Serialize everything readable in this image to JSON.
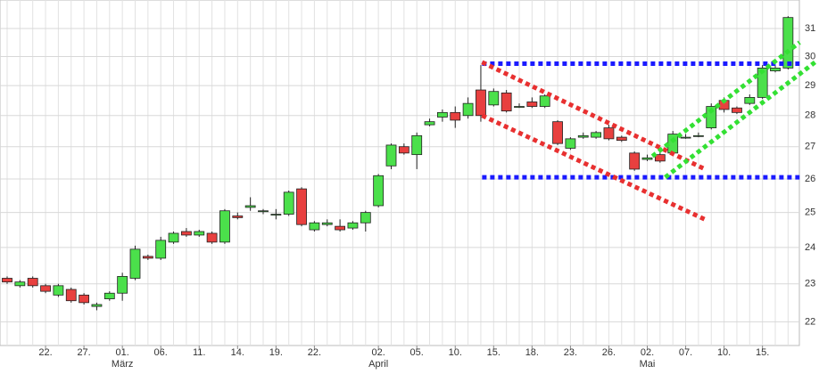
{
  "chart_data": {
    "type": "candlestick",
    "categories": [
      null,
      null,
      null,
      "22.",
      null,
      null,
      "27.",
      null,
      null,
      "01.",
      null,
      null,
      "06.",
      null,
      null,
      "11.",
      null,
      null,
      "14.",
      null,
      null,
      "19.",
      null,
      null,
      "22.",
      null,
      null,
      null,
      null,
      "02.",
      null,
      null,
      "05.",
      null,
      null,
      "10.",
      null,
      null,
      "15.",
      null,
      null,
      "18.",
      null,
      null,
      "23.",
      null,
      null,
      "26.",
      null,
      null,
      "02.",
      null,
      null,
      "07.",
      null,
      null,
      "10.",
      null,
      null,
      "15.",
      null,
      null
    ],
    "months": [
      null,
      null,
      null,
      null,
      null,
      null,
      null,
      null,
      null,
      "März",
      null,
      null,
      null,
      null,
      null,
      null,
      null,
      null,
      null,
      null,
      null,
      null,
      null,
      null,
      null,
      null,
      null,
      null,
      null,
      "April",
      null,
      null,
      null,
      null,
      null,
      null,
      null,
      null,
      null,
      null,
      null,
      null,
      null,
      null,
      null,
      null,
      null,
      null,
      null,
      null,
      "Mai",
      null,
      null,
      null,
      null,
      null,
      null,
      null,
      null,
      null,
      null,
      null
    ],
    "open": [
      23.15,
      22.95,
      23.15,
      22.95,
      22.7,
      22.85,
      22.7,
      22.4,
      22.6,
      22.75,
      23.15,
      23.75,
      23.7,
      24.15,
      24.45,
      24.35,
      24.4,
      24.15,
      24.9,
      25.15,
      25.05,
      24.95,
      24.95,
      25.7,
      24.5,
      24.65,
      24.6,
      24.55,
      24.7,
      25.2,
      26.4,
      27.0,
      26.75,
      27.7,
      27.95,
      28.1,
      28.0,
      28.85,
      28.35,
      28.75,
      28.3,
      28.45,
      28.3,
      27.8,
      26.95,
      27.3,
      27.3,
      27.6,
      27.3,
      26.8,
      26.6,
      26.75,
      26.8,
      27.3,
      27.35,
      27.6,
      28.5,
      28.25,
      28.4,
      28.6,
      29.5,
      29.6
    ],
    "high": [
      23.2,
      23.1,
      23.2,
      23.0,
      23.0,
      22.9,
      22.75,
      22.5,
      22.8,
      23.3,
      24.05,
      23.8,
      24.3,
      24.45,
      24.55,
      24.5,
      24.45,
      25.1,
      25.0,
      25.45,
      25.1,
      25.1,
      25.65,
      25.75,
      24.75,
      24.8,
      24.8,
      24.75,
      25.05,
      26.15,
      27.1,
      27.1,
      27.45,
      27.9,
      28.2,
      28.3,
      28.6,
      29.7,
      28.9,
      28.85,
      28.4,
      28.6,
      28.7,
      27.85,
      27.3,
      27.45,
      27.5,
      27.7,
      27.35,
      26.85,
      26.75,
      26.85,
      27.5,
      27.4,
      27.45,
      28.4,
      28.6,
      28.3,
      28.7,
      29.7,
      29.7,
      31.45
    ],
    "low": [
      23.0,
      22.9,
      22.9,
      22.75,
      22.65,
      22.5,
      22.45,
      22.3,
      22.55,
      22.55,
      23.1,
      23.65,
      23.65,
      24.1,
      24.3,
      24.3,
      24.1,
      24.1,
      24.8,
      25.05,
      24.95,
      24.8,
      24.9,
      24.6,
      24.45,
      24.6,
      24.45,
      24.5,
      24.45,
      25.15,
      26.3,
      26.75,
      26.3,
      27.65,
      27.8,
      27.6,
      27.9,
      27.8,
      28.3,
      28.1,
      28.25,
      28.25,
      28.25,
      27.05,
      26.9,
      27.25,
      27.25,
      27.2,
      27.15,
      26.25,
      26.55,
      26.5,
      26.75,
      27.25,
      27.3,
      27.55,
      28.1,
      28.05,
      28.35,
      28.55,
      29.45,
      29.55
    ],
    "close": [
      23.05,
      23.05,
      22.95,
      22.8,
      22.95,
      22.55,
      22.5,
      22.45,
      22.75,
      23.2,
      23.95,
      23.7,
      24.2,
      24.4,
      24.35,
      24.45,
      24.15,
      25.05,
      24.85,
      25.2,
      25.05,
      24.95,
      25.6,
      24.65,
      24.7,
      24.7,
      24.5,
      24.7,
      25.0,
      26.1,
      27.05,
      26.8,
      27.35,
      27.8,
      28.1,
      27.85,
      28.4,
      28.0,
      28.8,
      28.15,
      28.3,
      28.3,
      28.65,
      27.1,
      27.25,
      27.35,
      27.45,
      27.25,
      27.2,
      26.3,
      26.65,
      26.55,
      27.4,
      27.3,
      27.35,
      28.3,
      28.2,
      28.1,
      28.6,
      29.6,
      29.6,
      31.4
    ],
    "up_color": "#4be04b",
    "down_color": "#e8403f",
    "lines": [
      {
        "color": "#1a1aff",
        "x": [
          37.1,
          61.9
        ],
        "y": [
          29.75,
          29.75
        ]
      },
      {
        "color": "#1a1aff",
        "x": [
          37.1,
          61.9
        ],
        "y": [
          26.05,
          26.05
        ]
      },
      {
        "color": "#e83030",
        "x": [
          37.1,
          54.5
        ],
        "y": [
          29.8,
          26.3
        ]
      },
      {
        "color": "#e83030",
        "x": [
          37.1,
          54.5
        ],
        "y": [
          28.0,
          24.8
        ]
      },
      {
        "color": "#33e033",
        "x": [
          50.4,
          61.9
        ],
        "y": [
          26.7,
          30.5
        ]
      },
      {
        "color": "#33e033",
        "x": [
          51.4,
          63.1
        ],
        "y": [
          26.05,
          29.8
        ]
      }
    ],
    "ylim": [
      21.4,
      32.05
    ],
    "yticks": [
      22,
      23,
      24,
      25,
      26,
      27,
      28,
      29,
      30,
      31
    ],
    "log": true,
    "grid": true
  }
}
